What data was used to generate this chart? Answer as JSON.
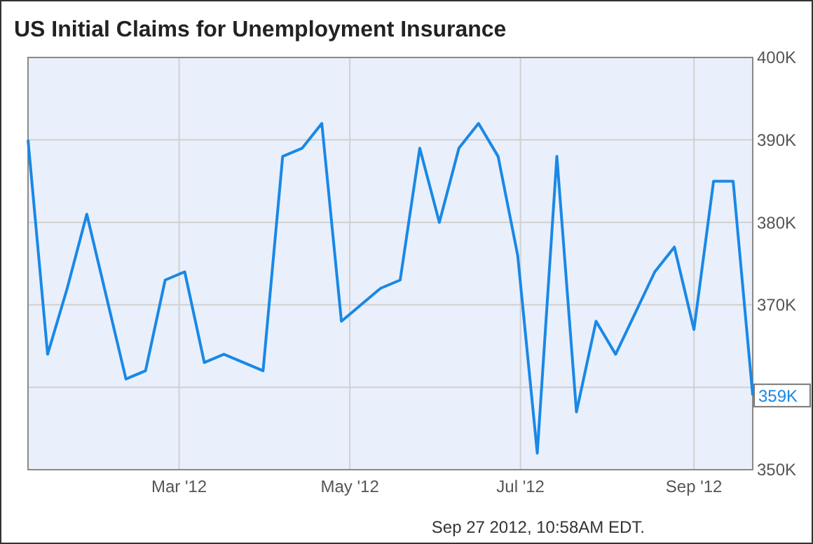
{
  "chart_data": {
    "type": "line",
    "title": "US Initial Claims for Unemployment Insurance",
    "x": [
      "2012-01-07",
      "2012-01-14",
      "2012-01-21",
      "2012-01-28",
      "2012-02-04",
      "2012-02-11",
      "2012-02-18",
      "2012-02-25",
      "2012-03-03",
      "2012-03-10",
      "2012-03-17",
      "2012-03-24",
      "2012-03-31",
      "2012-04-07",
      "2012-04-14",
      "2012-04-21",
      "2012-04-28",
      "2012-05-05",
      "2012-05-12",
      "2012-05-19",
      "2012-05-26",
      "2012-06-02",
      "2012-06-09",
      "2012-06-16",
      "2012-06-23",
      "2012-06-30",
      "2012-07-07",
      "2012-07-14",
      "2012-07-21",
      "2012-07-28",
      "2012-08-04",
      "2012-08-11",
      "2012-08-18",
      "2012-08-25",
      "2012-09-01",
      "2012-09-08",
      "2012-09-15",
      "2012-09-22"
    ],
    "series": [
      {
        "color": "#1a88e6",
        "values": [
          390,
          364,
          372,
          381,
          371,
          361,
          362,
          373,
          374,
          363,
          364,
          363,
          362,
          388,
          389,
          392,
          368,
          370,
          372,
          373,
          389,
          380,
          389,
          392,
          388,
          376,
          352,
          388,
          357,
          368,
          364,
          369,
          374,
          377,
          367,
          385,
          385,
          359
        ]
      }
    ],
    "xlim": [
      "2012-01-07",
      "2012-09-22"
    ],
    "xticks": [
      {
        "value": "2012-03-01",
        "label": "Mar '12"
      },
      {
        "value": "2012-05-01",
        "label": "May '12"
      },
      {
        "value": "2012-07-01",
        "label": "Jul '12"
      },
      {
        "value": "2012-09-01",
        "label": "Sep '12"
      }
    ],
    "ylim": [
      350,
      400
    ],
    "yticks": [
      {
        "value": 350,
        "label": "350K"
      },
      {
        "value": 360,
        "label": null
      },
      {
        "value": 370,
        "label": "370K"
      },
      {
        "value": 380,
        "label": "380K"
      },
      {
        "value": 390,
        "label": "390K"
      },
      {
        "value": 400,
        "label": "400K"
      }
    ],
    "grid": true,
    "marker": "none",
    "line_style": "solid",
    "annotations": [
      {
        "text": "359K",
        "x": "2012-09-22",
        "y": 359
      },
      "Sep 27 2012, 10:58AM EDT."
    ]
  }
}
